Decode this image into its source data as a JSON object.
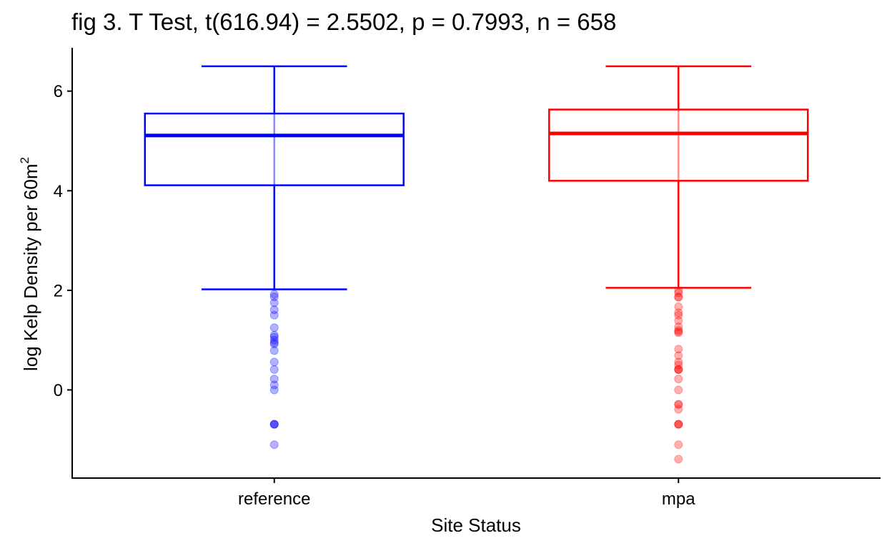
{
  "chart_data": {
    "type": "box",
    "title": "fig 3. T Test, t(616.94) = 2.5502, p = 0.7993, n = 658",
    "xlabel": "Site Status",
    "ylabel": "log Kelp Density per 60m",
    "ylabel_superscript": "2",
    "categories": [
      "reference",
      "mpa"
    ],
    "ylim": [
      -1.77,
      6.87
    ],
    "yticks": [
      "0",
      "2",
      "4",
      "6"
    ],
    "grid": false,
    "legend": "none",
    "series": [
      {
        "color": "#0000ff",
        "whisker_low": 2.02,
        "q1": 4.11,
        "median": 5.11,
        "q3": 5.55,
        "whisker_high": 6.5,
        "outliers": [
          1.92,
          1.87,
          1.75,
          1.61,
          1.5,
          1.25,
          1.1,
          1.06,
          1.0,
          0.95,
          0.92,
          0.79,
          0.56,
          0.41,
          0.22,
          0.1,
          0.0,
          -0.69,
          -0.69,
          -0.69,
          -1.1
        ]
      },
      {
        "color": "#ff0000",
        "whisker_low": 2.05,
        "q1": 4.2,
        "median": 5.15,
        "q3": 5.63,
        "whisker_high": 6.5,
        "outliers": [
          1.99,
          1.95,
          1.87,
          1.86,
          1.67,
          1.55,
          1.5,
          1.39,
          1.27,
          1.2,
          1.17,
          1.15,
          0.82,
          0.69,
          0.56,
          0.5,
          0.41,
          0.41,
          0.41,
          0.22,
          0.0,
          -0.29,
          -0.29,
          -0.39,
          -0.69,
          -0.69,
          -0.69,
          -1.1,
          -1.39
        ]
      }
    ]
  }
}
